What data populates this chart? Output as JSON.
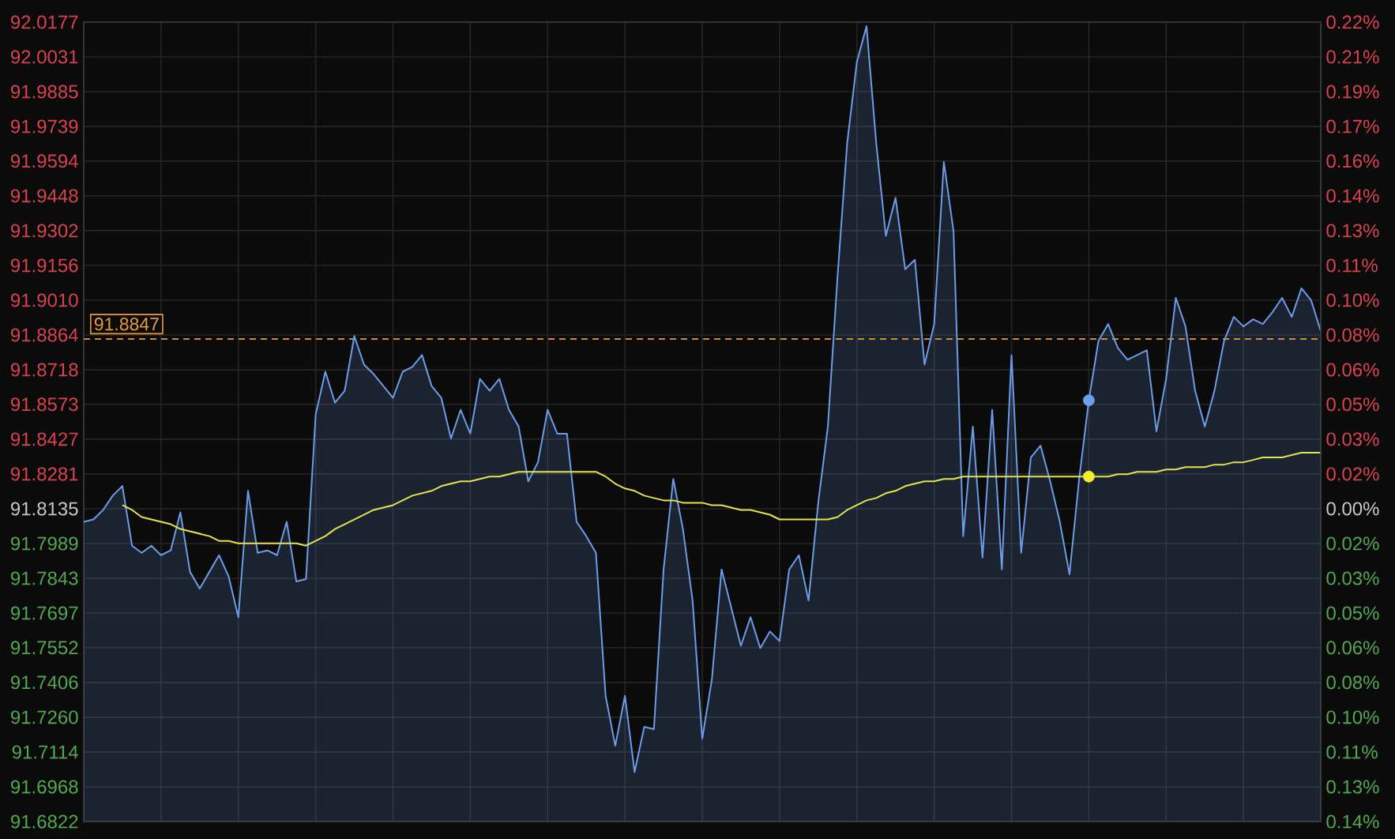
{
  "chart_data": {
    "type": "area",
    "categories": [
      null,
      null,
      null,
      null,
      null,
      null,
      null,
      null,
      null,
      null,
      null,
      null,
      null,
      null,
      null,
      null,
      null,
      null,
      null,
      null,
      null,
      null,
      null,
      null,
      null,
      null,
      null,
      null,
      null,
      null,
      null,
      null,
      null,
      null,
      null,
      null,
      null,
      null,
      null,
      null,
      null,
      null,
      null,
      null,
      null,
      null,
      null,
      null,
      null,
      null,
      null,
      null,
      null,
      null,
      null,
      null,
      null,
      null,
      null,
      null,
      null,
      null,
      null,
      null,
      null,
      null,
      null,
      null,
      null,
      null,
      null,
      null,
      null,
      null,
      null,
      null,
      null,
      null,
      null,
      null,
      null,
      null,
      null,
      null,
      null,
      null,
      null,
      null,
      null,
      null,
      null,
      null,
      null,
      null,
      null,
      null,
      null,
      null,
      null,
      null,
      null,
      null,
      null,
      null,
      null,
      null,
      null,
      null,
      null,
      null,
      null,
      null,
      null,
      null,
      null,
      null,
      null,
      null,
      null,
      null,
      null,
      null,
      null,
      null,
      null,
      null,
      null,
      null,
      null
    ],
    "series": [
      {
        "color": "#6c9ce8",
        "values": [
          91.808,
          91.809,
          91.813,
          91.819,
          91.823,
          91.798,
          91.795,
          91.798,
          91.794,
          91.796,
          91.812,
          91.787,
          91.78,
          91.787,
          91.794,
          91.785,
          91.768,
          91.821,
          91.795,
          91.796,
          91.794,
          91.808,
          91.783,
          91.784,
          91.853,
          91.871,
          91.858,
          91.863,
          91.886,
          91.874,
          91.87,
          91.865,
          91.86,
          91.871,
          91.873,
          91.878,
          91.865,
          91.86,
          91.843,
          91.855,
          91.845,
          91.868,
          91.863,
          91.868,
          91.855,
          91.848,
          91.825,
          91.833,
          91.855,
          91.845,
          91.845,
          91.808,
          91.802,
          91.795,
          91.735,
          91.714,
          91.735,
          91.703,
          91.722,
          91.721,
          91.788,
          91.826,
          91.805,
          91.775,
          91.717,
          91.742,
          91.788,
          91.772,
          91.756,
          91.768,
          91.755,
          91.762,
          91.758,
          91.788,
          91.794,
          91.775,
          91.816,
          91.848,
          91.911,
          91.967,
          92.001,
          92.016,
          91.967,
          91.928,
          91.944,
          91.914,
          91.918,
          91.874,
          91.891,
          91.959,
          91.93,
          91.802,
          91.848,
          91.793,
          91.855,
          91.788,
          91.878,
          91.795,
          91.835,
          91.84,
          91.825,
          91.808,
          91.786,
          91.826,
          91.859,
          91.884,
          91.891,
          91.881,
          91.876,
          91.878,
          91.88,
          91.846,
          91.868,
          91.902,
          91.89,
          91.863,
          91.848,
          91.863,
          91.884,
          91.894,
          91.89,
          91.893,
          91.891,
          91.896,
          91.902,
          91.894,
          91.906,
          91.901,
          91.888
        ]
      },
      {
        "type": "line",
        "color": "#e4e452",
        "values": [
          null,
          null,
          null,
          null,
          91.815,
          91.813,
          91.81,
          91.809,
          91.808,
          91.807,
          91.805,
          91.804,
          91.803,
          91.802,
          91.8,
          91.8,
          91.799,
          91.799,
          91.799,
          91.799,
          91.799,
          91.799,
          91.799,
          91.798,
          91.8,
          91.802,
          91.805,
          91.807,
          91.809,
          91.811,
          91.813,
          91.814,
          91.815,
          91.817,
          91.819,
          91.82,
          91.821,
          91.823,
          91.824,
          91.825,
          91.825,
          91.826,
          91.827,
          91.827,
          91.828,
          91.829,
          91.829,
          91.829,
          91.829,
          91.829,
          91.829,
          91.829,
          91.829,
          91.829,
          91.827,
          91.824,
          91.822,
          91.821,
          91.819,
          91.818,
          91.817,
          91.817,
          91.816,
          91.816,
          91.816,
          91.815,
          91.815,
          91.814,
          91.813,
          91.813,
          91.812,
          91.811,
          91.809,
          91.809,
          91.809,
          91.809,
          91.809,
          91.809,
          91.81,
          91.813,
          91.815,
          91.817,
          91.818,
          91.82,
          91.821,
          91.823,
          91.824,
          91.825,
          91.825,
          91.826,
          91.826,
          91.827,
          91.827,
          91.827,
          91.827,
          91.827,
          91.827,
          91.827,
          91.827,
          91.827,
          91.827,
          91.827,
          91.827,
          91.827,
          91.827,
          91.827,
          91.827,
          91.828,
          91.828,
          91.829,
          91.829,
          91.829,
          91.83,
          91.83,
          91.831,
          91.831,
          91.831,
          91.832,
          91.832,
          91.833,
          91.833,
          91.834,
          91.835,
          91.835,
          91.835,
          91.836,
          91.837,
          91.837,
          91.837
        ]
      },
      {
        "type": "scatter",
        "marker": "circle",
        "color": "#6ea0ea",
        "values": [
          null,
          null,
          null,
          null,
          null,
          null,
          null,
          null,
          null,
          null,
          null,
          null,
          null,
          null,
          null,
          null,
          null,
          null,
          null,
          null,
          null,
          null,
          null,
          null,
          null,
          null,
          null,
          null,
          null,
          null,
          null,
          null,
          null,
          null,
          null,
          null,
          null,
          null,
          null,
          null,
          null,
          null,
          null,
          null,
          null,
          null,
          null,
          null,
          null,
          null,
          null,
          null,
          null,
          null,
          null,
          null,
          null,
          null,
          null,
          null,
          null,
          null,
          null,
          null,
          null,
          null,
          null,
          null,
          null,
          null,
          null,
          null,
          null,
          null,
          null,
          null,
          null,
          null,
          null,
          null,
          null,
          null,
          null,
          null,
          null,
          null,
          null,
          null,
          null,
          null,
          null,
          null,
          null,
          null,
          null,
          null,
          null,
          null,
          null,
          null,
          null,
          null,
          null,
          null,
          91.859,
          null,
          null,
          null,
          null,
          null,
          null,
          null,
          null,
          null,
          null,
          null,
          null,
          null,
          null,
          null,
          null,
          null,
          null,
          null,
          null,
          null,
          null,
          null,
          null
        ]
      },
      {
        "type": "scatter",
        "marker": "circle",
        "color": "#f2ee2e",
        "values": [
          null,
          null,
          null,
          null,
          null,
          null,
          null,
          null,
          null,
          null,
          null,
          null,
          null,
          null,
          null,
          null,
          null,
          null,
          null,
          null,
          null,
          null,
          null,
          null,
          null,
          null,
          null,
          null,
          null,
          null,
          null,
          null,
          null,
          null,
          null,
          null,
          null,
          null,
          null,
          null,
          null,
          null,
          null,
          null,
          null,
          null,
          null,
          null,
          null,
          null,
          null,
          null,
          null,
          null,
          null,
          null,
          null,
          null,
          null,
          null,
          null,
          null,
          null,
          null,
          null,
          null,
          null,
          null,
          null,
          null,
          null,
          null,
          null,
          null,
          null,
          null,
          null,
          null,
          null,
          null,
          null,
          null,
          null,
          null,
          null,
          null,
          null,
          null,
          null,
          null,
          null,
          null,
          null,
          null,
          null,
          null,
          null,
          null,
          null,
          null,
          null,
          null,
          null,
          null,
          91.827,
          null,
          null,
          null,
          null,
          null,
          null,
          null,
          null,
          null,
          null,
          null,
          null,
          null,
          null,
          null,
          null,
          null,
          null,
          null,
          null,
          null,
          null,
          null,
          null
        ]
      }
    ],
    "ylim": [
      91.6822,
      92.0177
    ],
    "yticks": [
      92.0177,
      92.0031,
      91.9885,
      91.9739,
      91.9594,
      91.9448,
      91.9302,
      91.9156,
      {
        "value": 91.901,
        "label": "91.9010"
      },
      91.8864,
      91.8718,
      91.8573,
      91.8427,
      91.8281,
      91.8135,
      91.7989,
      91.7843,
      91.7697,
      91.7552,
      91.7406,
      {
        "value": 91.726,
        "label": "91.7260"
      },
      91.7114,
      91.6968,
      91.6822
    ],
    "y2lim": [
      -0.143,
      0.2224
    ],
    "y2ticks": [
      {
        "value": 0.2224,
        "label": "0.22%"
      },
      {
        "value": 0.2065,
        "label": "0.21%"
      },
      {
        "value": 0.1906,
        "label": "0.19%"
      },
      {
        "value": 0.1747,
        "label": "0.17%"
      },
      {
        "value": 0.1589,
        "label": "0.16%"
      },
      {
        "value": 0.143,
        "label": "0.14%"
      },
      {
        "value": 0.1271,
        "label": "0.13%"
      },
      {
        "value": 0.1112,
        "label": "0.11%"
      },
      {
        "value": 0.0953,
        "label": "0.10%"
      },
      {
        "value": 0.0794,
        "label": "0.08%"
      },
      {
        "value": 0.0635,
        "label": "0.06%"
      },
      {
        "value": 0.0477,
        "label": "0.05%"
      },
      {
        "value": 0.0318,
        "label": "0.03%"
      },
      {
        "value": 0.0159,
        "label": "0.02%"
      },
      {
        "value": 0,
        "label": "0.00%"
      },
      {
        "value": -0.0159,
        "label": "0.02%"
      },
      {
        "value": -0.0318,
        "label": "0.03%"
      },
      {
        "value": -0.0477,
        "label": "0.05%"
      },
      {
        "value": -0.0635,
        "label": "0.06%"
      },
      {
        "value": -0.0794,
        "label": "0.08%"
      },
      {
        "value": -0.0953,
        "label": "0.10%"
      },
      {
        "value": -0.1112,
        "label": "0.11%"
      },
      {
        "value": -0.1271,
        "label": "0.13%"
      },
      {
        "value": -0.143,
        "label": "0.14%"
      }
    ],
    "ref_lines": [
      {
        "axis": "y",
        "value": 91.8847,
        "label": "91.8847",
        "color": "#e89a3c",
        "line_style": "dashed"
      }
    ],
    "grid": true
  }
}
